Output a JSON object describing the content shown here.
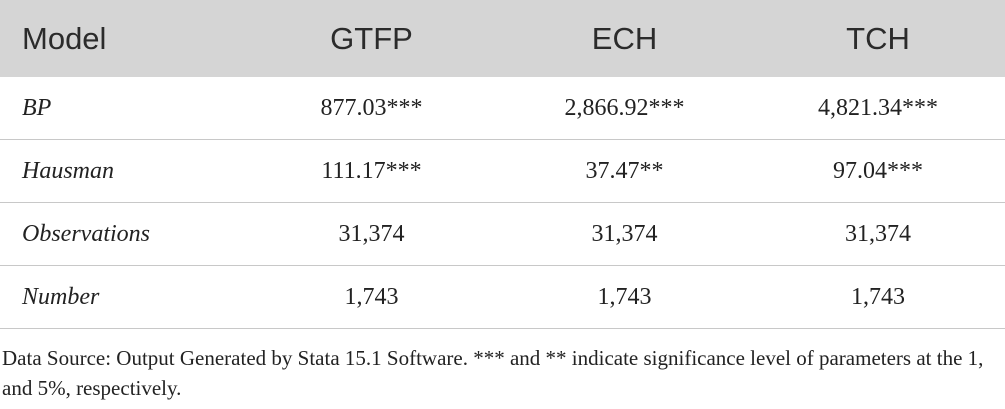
{
  "table": {
    "header": [
      "Model",
      "GTFP",
      "ECH",
      "TCH"
    ],
    "rows": [
      [
        "BP",
        "877.03***",
        "2,866.92***",
        "4,821.34***"
      ],
      [
        "Hausman",
        "111.17***",
        "37.47**",
        "97.04***"
      ],
      [
        "Observations",
        "31,374",
        "31,374",
        "31,374"
      ],
      [
        "Number",
        "1,743",
        "1,743",
        "1,743"
      ]
    ]
  },
  "footnote": "Data Source: Output Generated by Stata 15.1 Software. *** and ** indicate significance level of parameters at the 1, and 5%, respectively."
}
